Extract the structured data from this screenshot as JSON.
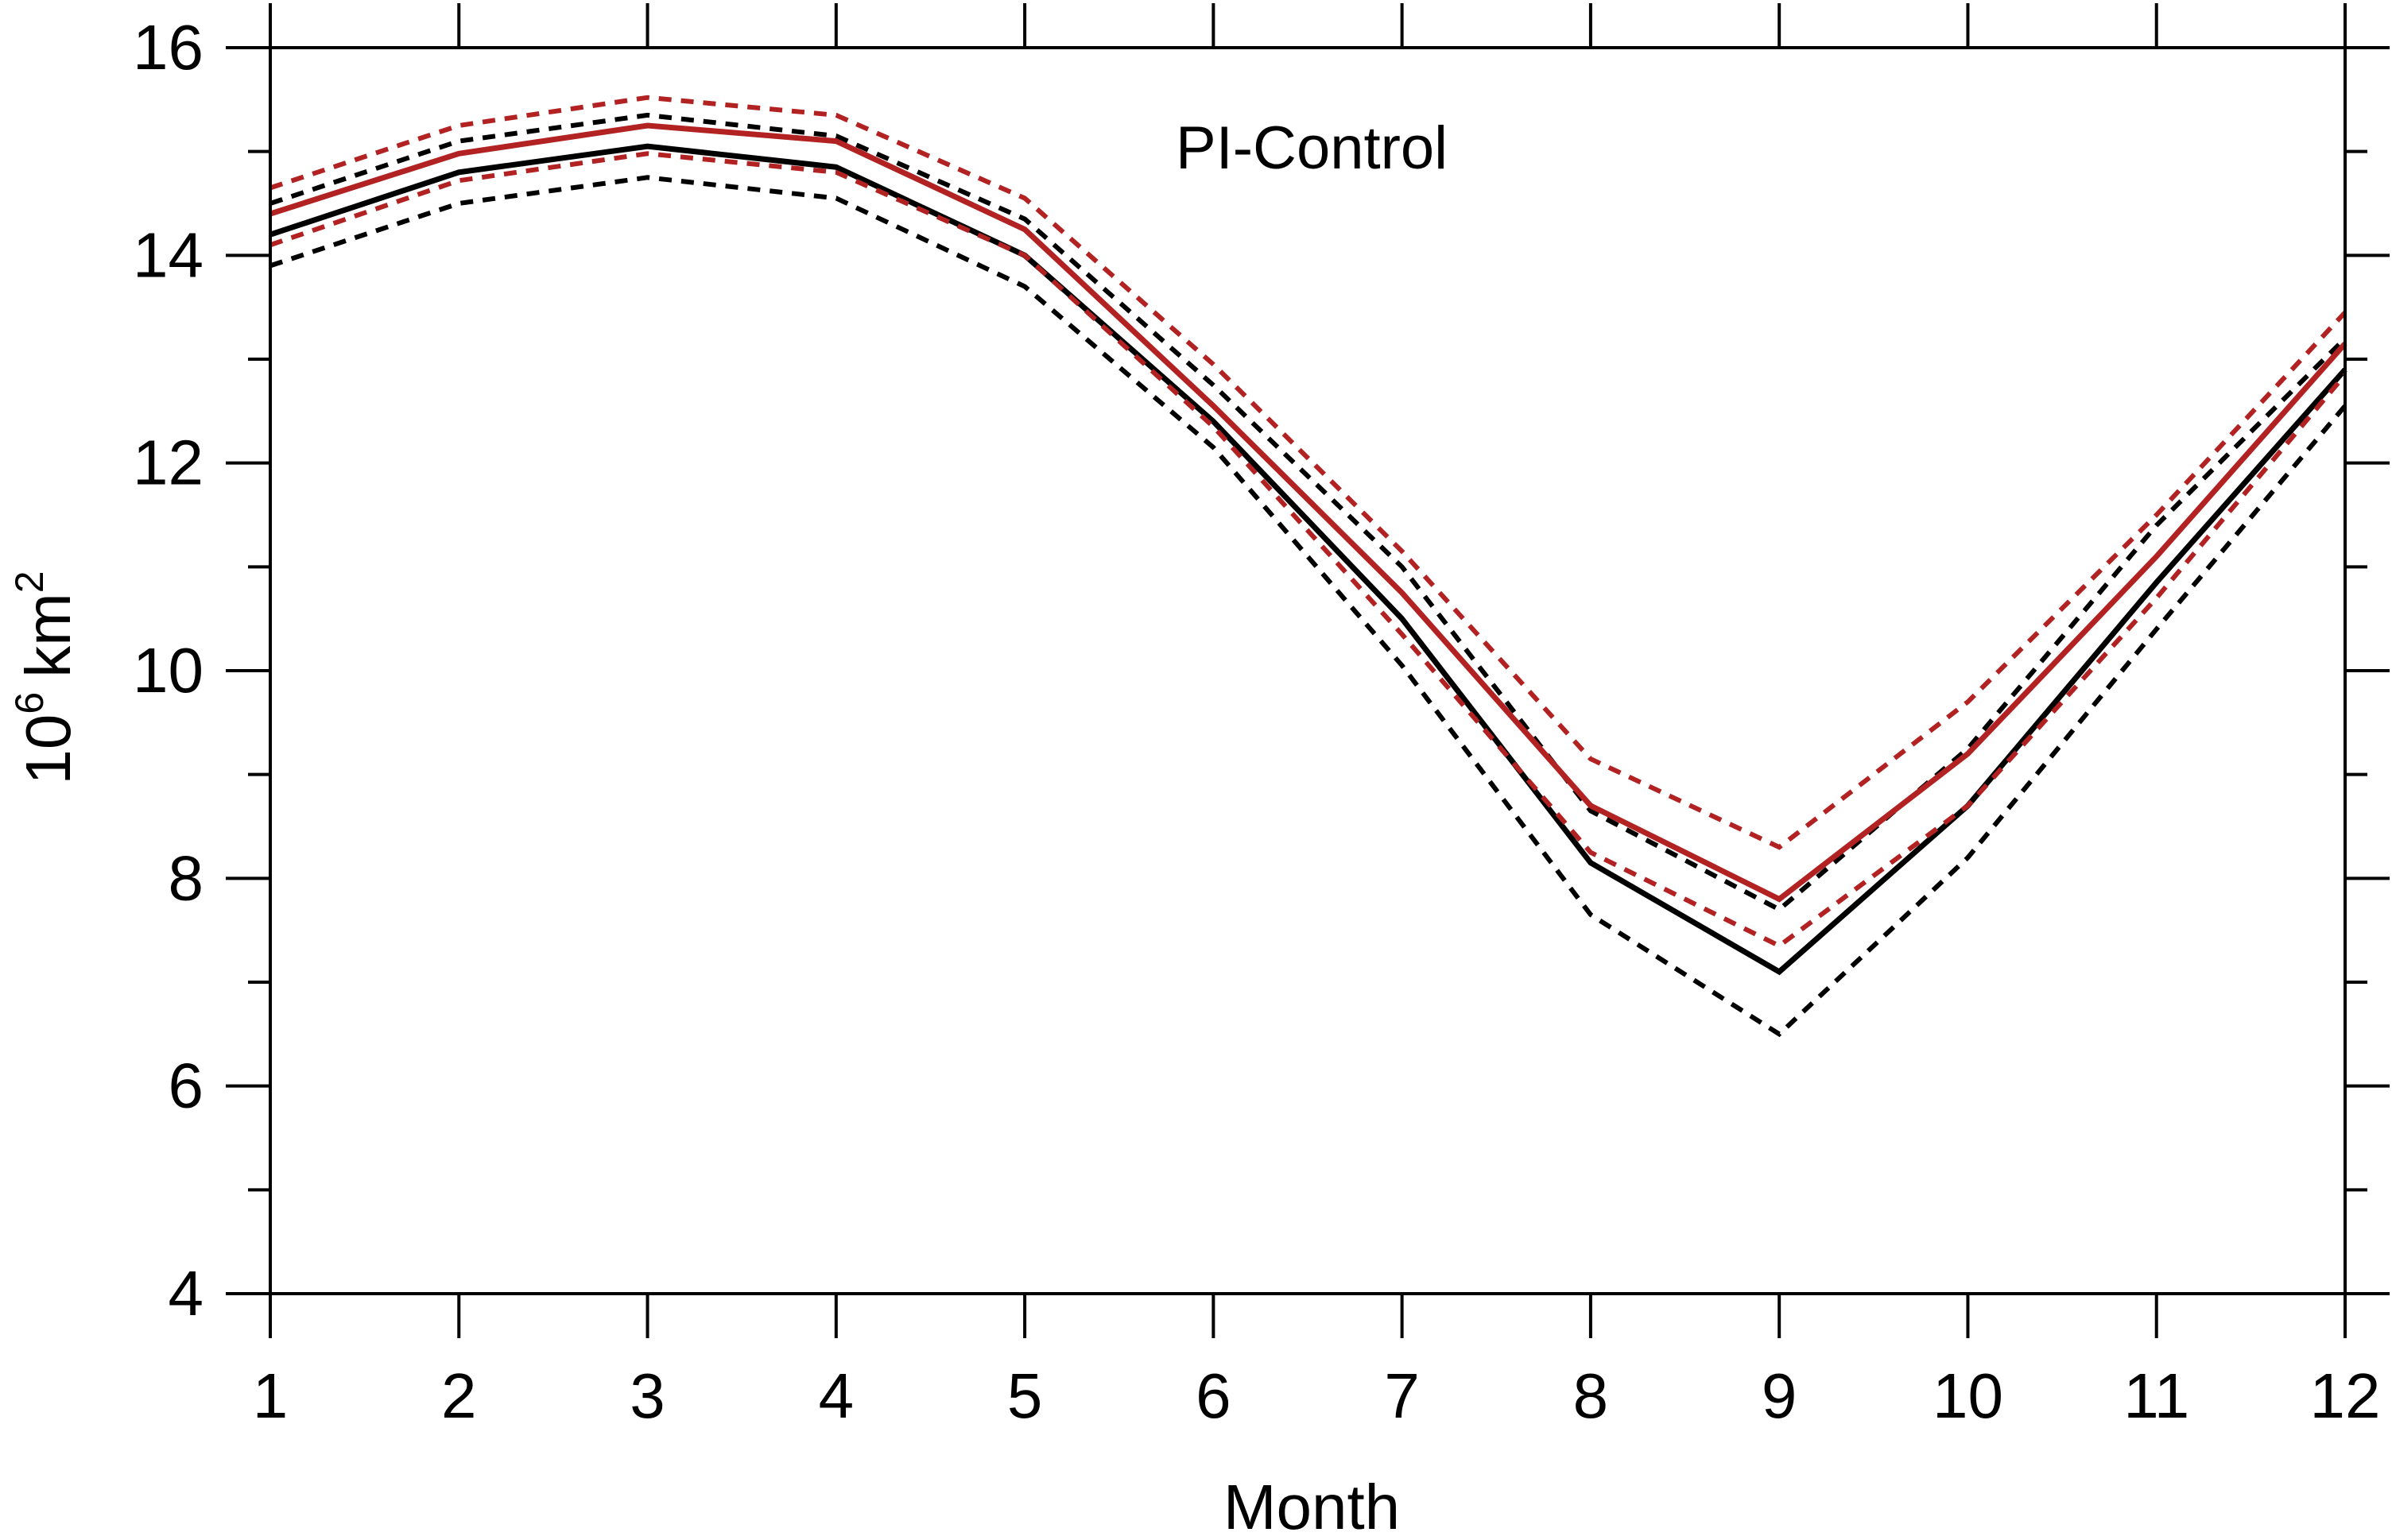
{
  "chart_data": {
    "type": "line",
    "title": "PI-Control",
    "xlabel": "Month",
    "ylabel": {
      "base": "10",
      "base_exponent": "6",
      "unit": "km",
      "unit_exponent": "2"
    },
    "x": [
      1,
      2,
      3,
      4,
      5,
      6,
      7,
      8,
      9,
      10,
      11,
      12
    ],
    "x_tick_labels": [
      "1",
      "2",
      "3",
      "4",
      "5",
      "6",
      "7",
      "8",
      "9",
      "10",
      "11",
      "12"
    ],
    "xlim": [
      1,
      12
    ],
    "ylim": [
      4,
      16
    ],
    "y_ticks": [
      4,
      6,
      8,
      10,
      12,
      14,
      16
    ],
    "y_tick_labels": [
      "4",
      "6",
      "8",
      "10",
      "12",
      "14",
      "16"
    ],
    "y_minor_step": 1,
    "grid": false,
    "legend": "none",
    "series": [
      {
        "color": "#000000",
        "dash": "solid",
        "values": [
          14.2,
          14.8,
          15.05,
          14.85,
          14.0,
          12.4,
          10.5,
          8.15,
          7.1,
          8.7,
          10.85,
          12.9
        ]
      },
      {
        "color": "#000000",
        "dash": "dashed",
        "values": [
          14.5,
          15.1,
          15.35,
          15.15,
          14.35,
          12.75,
          11.0,
          8.65,
          7.7,
          9.25,
          11.4,
          13.2
        ]
      },
      {
        "color": "#000000",
        "dash": "dashed",
        "values": [
          13.9,
          14.5,
          14.75,
          14.55,
          13.7,
          12.15,
          10.05,
          7.65,
          6.5,
          8.2,
          10.4,
          12.55
        ]
      },
      {
        "color": "#b22222",
        "dash": "solid",
        "values": [
          14.4,
          14.98,
          15.25,
          15.1,
          14.25,
          12.55,
          10.75,
          8.7,
          7.8,
          9.2,
          11.1,
          13.15
        ]
      },
      {
        "color": "#b22222",
        "dash": "dashed",
        "values": [
          14.65,
          15.25,
          15.52,
          15.35,
          14.55,
          12.95,
          11.15,
          9.15,
          8.3,
          9.7,
          11.5,
          13.45
        ]
      },
      {
        "color": "#b22222",
        "dash": "dashed",
        "values": [
          14.1,
          14.72,
          14.98,
          14.8,
          14.0,
          12.35,
          10.35,
          8.25,
          7.35,
          8.7,
          10.7,
          12.85
        ]
      }
    ]
  }
}
